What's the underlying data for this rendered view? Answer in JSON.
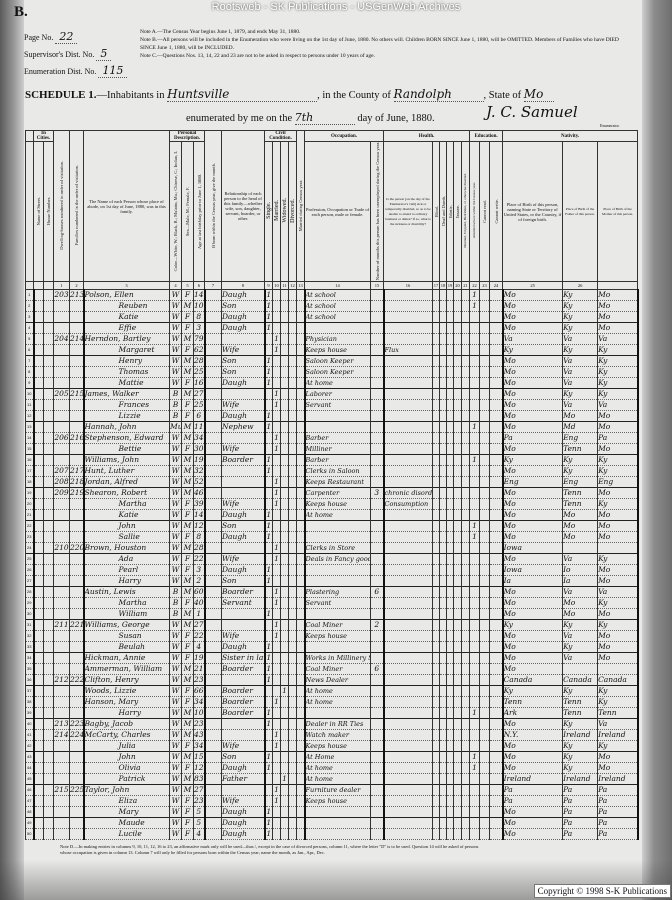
{
  "watermark": "Rootsweb - SK Publications - USGenWeb Archives",
  "form_letter": "B.",
  "meta": {
    "page_label": "Page No.",
    "page_value": "22",
    "supervisor_label": "Supervisor's Dist. No.",
    "supervisor_value": "5",
    "enumeration_label": "Enumeration Dist. No.",
    "enumeration_value": "115"
  },
  "notes": [
    "Note A.—The Census Year begins June 1, 1879, and ends May 31, 1880.",
    "Note B.—All persons will be included in the Enumeration who were living on the 1st day of June, 1880. No others will. Children BORN SINCE June 1, 1880, will be OMITTED. Members of Families who have DIED SINCE June 1, 1880, will be INCLUDED.",
    "Note C.—Questions Nos. 13, 14, 22 and 23 are not to be asked in respect to persons under 10 years of age."
  ],
  "schedule": {
    "title": "SCHEDULE 1.",
    "inhabitants_label": "—Inhabitants in",
    "place": "Huntsville",
    "county_label": ", in the County of",
    "county": "Randolph",
    "state_label": ", State of",
    "state": "Mo",
    "enumerated_label": "enumerated by me on the",
    "day": "7th",
    "day_suffix": "day of June, 1880.",
    "signature": "J. C. Samuel",
    "enumerator_tag": "Enumerator."
  },
  "headers": {
    "groups": [
      "In Cities.",
      "Personal Description.",
      "Civil Condition.",
      "Occupation.",
      "Health.",
      "Education.",
      "Nativity."
    ],
    "street": "Name of Street.",
    "house": "House Number.",
    "dwelling": "Dwelling-houses numbered in order of visitation.",
    "family": "Families numbered in the order of visitation.",
    "name": "The Name of each Person whose place of abode, on 1st day of June, 1880, was in this family.",
    "color": "Color—White, W.; Black, B.; Mulatto, Mu.; Chinese, C.; Indian, I.",
    "sex": "Sex—Male, M.; Female, F.",
    "age": "Age at last birthday prior to June 1, 1880.",
    "month": "If born within the Census year, give the month.",
    "relation": "Relationship of each person to the head of this family—whether wife, son, daughter, servant, boarder, or other.",
    "single": "Single.",
    "married": "Married.",
    "widowed": "Widowed.",
    "divorced": "Divorced.",
    "married_year": "Married during Census year.",
    "occupation": "Profession, Occupation or Trade of each person, male or female.",
    "unemployed": "Number of months this person has been unemployed during the Census year.",
    "sickness": "Is the person [on the day of the Enumerator's visit] sick or temporarily disabled, so as to be unable to attend to ordinary business or duties? If so, what is the sickness or disability?",
    "blind": "Blind.",
    "deaf": "Deaf and Dumb.",
    "idiotic": "Idiotic.",
    "insane": "Insane.",
    "maimed": "Maimed, Crippled, Bedridden, or otherwise disabled.",
    "school": "Attended school within the Census year.",
    "read": "Cannot read.",
    "write": "Cannot write.",
    "birthplace": "Place of Birth of this person, naming State or Territory of United States, or the Country, if of foreign birth.",
    "father_birth": "Place of Birth of the Father of this person.",
    "mother_birth": "Place of Birth of the Mother of this person.",
    "numbers": [
      "",
      "",
      "1",
      "2",
      "3",
      "4",
      "5",
      "6",
      "7",
      "8",
      "9",
      "10",
      "11",
      "12",
      "13",
      "14",
      "15",
      "16",
      "17",
      "18",
      "19",
      "20",
      "21",
      "22",
      "23",
      "24",
      "25",
      "26"
    ]
  },
  "rows": [
    {
      "line": "1",
      "dwelling": "203",
      "family": "213",
      "name": "Polson, Ellen",
      "color": "W",
      "sex": "F",
      "age": "14",
      "relation": "Daugh",
      "single": "1",
      "occupation": "At school",
      "birth": "Mo",
      "father": "Ky",
      "mother": "Mo",
      "school": "1"
    },
    {
      "line": "2",
      "name": "Reuben",
      "color": "W",
      "sex": "M",
      "age": "10",
      "relation": "Son",
      "single": "1",
      "occupation": "At school",
      "birth": "Mo",
      "father": "Ky",
      "mother": "Mo",
      "school": "1"
    },
    {
      "line": "3",
      "name": "Katie",
      "color": "W",
      "sex": "F",
      "age": "8",
      "relation": "Daugh",
      "single": "1",
      "occupation": "At school",
      "birth": "Mo",
      "father": "Ky",
      "mother": "Mo"
    },
    {
      "line": "4",
      "name": "Effie",
      "color": "W",
      "sex": "F",
      "age": "3",
      "relation": "Daugh",
      "single": "1",
      "birth": "Mo",
      "father": "Ky",
      "mother": "Mo",
      "divider": true
    },
    {
      "line": "5",
      "dwelling": "204",
      "family": "214",
      "name": "Herndon, Bartley",
      "color": "W",
      "sex": "M",
      "age": "79",
      "married": "1",
      "occupation": "Physician",
      "birth": "Va",
      "father": "Va",
      "mother": "Va"
    },
    {
      "line": "6",
      "name": "Margaret",
      "color": "W",
      "sex": "F",
      "age": "62",
      "relation": "Wife",
      "married": "1",
      "occupation": "Keeps house",
      "sickness": "Flux",
      "birth": "Ky",
      "father": "Ky",
      "mother": "Ky"
    },
    {
      "line": "7",
      "name": "Henry",
      "color": "W",
      "sex": "M",
      "age": "28",
      "relation": "Son",
      "single": "1",
      "occupation": "Saloon Keeper",
      "birth": "Mo",
      "father": "Va",
      "mother": "Ky",
      "divider": true
    },
    {
      "line": "8",
      "name": "Thomas",
      "color": "W",
      "sex": "M",
      "age": "25",
      "relation": "Son",
      "single": "1",
      "occupation": "Saloon Keeper",
      "birth": "Mo",
      "father": "Va",
      "mother": "Ky"
    },
    {
      "line": "9",
      "name": "Mattie",
      "color": "W",
      "sex": "F",
      "age": "16",
      "relation": "Daugh",
      "single": "1",
      "occupation": "At home",
      "birth": "Mo",
      "father": "Va",
      "mother": "Ky"
    },
    {
      "line": "10",
      "dwelling": "205",
      "family": "215",
      "name": "James, Walker",
      "color": "B",
      "sex": "M",
      "age": "27",
      "married": "1",
      "occupation": "Laborer",
      "birth": "Mo",
      "father": "Ky",
      "mother": "Ky",
      "divider": true
    },
    {
      "line": "11",
      "name": "Frances",
      "color": "B",
      "sex": "F",
      "age": "25",
      "relation": "Wife",
      "married": "1",
      "occupation": "Servant",
      "birth": "Mo",
      "father": "Va",
      "mother": "Va"
    },
    {
      "line": "12",
      "name": "Lizzie",
      "color": "B",
      "sex": "F",
      "age": "6",
      "relation": "Daugh",
      "single": "1",
      "birth": "Mo",
      "father": "Mo",
      "mother": "Mo"
    },
    {
      "line": "13",
      "name": "Hannah, John",
      "color": "Mu",
      "sex": "M",
      "age": "11",
      "relation": "Nephew",
      "single": "1",
      "birth": "Mo",
      "father": "Md",
      "mother": "Mo",
      "school": "1",
      "divider": true
    },
    {
      "line": "14",
      "dwelling": "206",
      "family": "216",
      "name": "Stephenson, Edward",
      "color": "W",
      "sex": "M",
      "age": "34",
      "married": "1",
      "occupation": "Barber",
      "birth": "Pa",
      "father": "Eng",
      "mother": "Pa"
    },
    {
      "line": "15",
      "name": "Bettie",
      "color": "W",
      "sex": "F",
      "age": "30",
      "relation": "Wife",
      "married": "1",
      "occupation": "Milliner",
      "birth": "Mo",
      "father": "Tenn",
      "mother": "Mo"
    },
    {
      "line": "16",
      "name": "Williams, John",
      "color": "W",
      "sex": "M",
      "age": "19",
      "relation": "Boarder",
      "single": "1",
      "occupation": "Barber",
      "birth": "Ky",
      "father": "Ky",
      "mother": "Ky",
      "school": "1",
      "divider": true
    },
    {
      "line": "17",
      "dwelling": "207",
      "family": "217",
      "name": "Hunt, Luther",
      "color": "W",
      "sex": "M",
      "age": "32",
      "single": "1",
      "occupation": "Clerks in Saloon",
      "birth": "Mo",
      "father": "Ky",
      "mother": "Ky"
    },
    {
      "line": "18",
      "dwelling": "208",
      "family": "218",
      "name": "Jordan, Alfred",
      "color": "W",
      "sex": "M",
      "age": "52",
      "married": "1",
      "occupation": "Keeps Restaurant",
      "birth": "Eng",
      "father": "Eng",
      "mother": "Eng"
    },
    {
      "line": "19",
      "dwelling": "209",
      "family": "219",
      "name": "Shearon, Robert",
      "color": "W",
      "sex": "M",
      "age": "46",
      "married": "1",
      "occupation": "Carpenter",
      "unemployed": "3",
      "sickness": "chronic disorder",
      "birth": "Mo",
      "father": "Tenn",
      "mother": "Mo",
      "divider": true
    },
    {
      "line": "20",
      "name": "Martha",
      "color": "W",
      "sex": "F",
      "age": "39",
      "relation": "Wife",
      "married": "1",
      "occupation": "Keeps house",
      "sickness": "Consumption",
      "birth": "Mo",
      "father": "Tenn",
      "mother": "Ky"
    },
    {
      "line": "21",
      "name": "Katie",
      "color": "W",
      "sex": "F",
      "age": "14",
      "relation": "Daugh",
      "single": "1",
      "occupation": "At home",
      "birth": "Mo",
      "father": "Mo",
      "mother": "Mo"
    },
    {
      "line": "22",
      "name": "John",
      "color": "W",
      "sex": "M",
      "age": "12",
      "relation": "Son",
      "single": "1",
      "birth": "Mo",
      "father": "Mo",
      "mother": "Mo",
      "school": "1",
      "divider": true
    },
    {
      "line": "23",
      "name": "Sallie",
      "color": "W",
      "sex": "F",
      "age": "8",
      "relation": "Daugh",
      "single": "1",
      "birth": "Mo",
      "father": "Mo",
      "mother": "Mo",
      "school": "1"
    },
    {
      "line": "24",
      "dwelling": "210",
      "family": "220",
      "name": "Brown, Houston",
      "color": "W",
      "sex": "M",
      "age": "28",
      "married": "1",
      "occupation": "Clerks in Store",
      "birth": "Iowa",
      "father": "",
      "mother": ""
    },
    {
      "line": "25",
      "name": "Ada",
      "color": "W",
      "sex": "F",
      "age": "22",
      "relation": "Wife",
      "married": "1",
      "occupation": "Deals in Fancy goods",
      "birth": "Mo",
      "father": "Va",
      "mother": "Ky",
      "divider": true
    },
    {
      "line": "26",
      "name": "Pearl",
      "color": "W",
      "sex": "F",
      "age": "3",
      "relation": "Daugh",
      "single": "1",
      "birth": "Iowa",
      "father": "Io",
      "mother": "Mo"
    },
    {
      "line": "27",
      "name": "Harry",
      "color": "W",
      "sex": "M",
      "age": "2",
      "relation": "Son",
      "single": "1",
      "birth": "Ia",
      "father": "Ia",
      "mother": "Mo"
    },
    {
      "line": "28",
      "name": "Austin, Lewis",
      "color": "B",
      "sex": "M",
      "age": "60",
      "relation": "Boarder",
      "married": "1",
      "occupation": "Plastering",
      "unemployed": "6",
      "birth": "Mo",
      "father": "Va",
      "mother": "Va",
      "divider": true
    },
    {
      "line": "29",
      "name": "Martha",
      "color": "B",
      "sex": "F",
      "age": "40",
      "relation": "Servant",
      "married": "1",
      "occupation": "Servant",
      "birth": "Mo",
      "father": "Mo",
      "mother": "Ky"
    },
    {
      "line": "30",
      "name": "William",
      "color": "B",
      "sex": "M",
      "age": "1",
      "single": "1",
      "birth": "Mo",
      "father": "Mo",
      "mother": "Mo"
    },
    {
      "line": "31",
      "dwelling": "211",
      "family": "221",
      "name": "Williams, George",
      "color": "W",
      "sex": "M",
      "age": "27",
      "married": "1",
      "occupation": "Coal Miner",
      "unemployed": "2",
      "birth": "Ky",
      "father": "Ky",
      "mother": "Ky",
      "divider": true
    },
    {
      "line": "32",
      "name": "Susan",
      "color": "W",
      "sex": "F",
      "age": "22",
      "relation": "Wife",
      "married": "1",
      "occupation": "Keeps house",
      "birth": "Mo",
      "father": "Va",
      "mother": "Mo"
    },
    {
      "line": "33",
      "name": "Beulah",
      "color": "W",
      "sex": "F",
      "age": "4",
      "relation": "Daugh",
      "single": "1",
      "birth": "Mo",
      "father": "Ky",
      "mother": "Mo"
    },
    {
      "line": "34",
      "name": "Hickman, Annie",
      "color": "W",
      "sex": "F",
      "age": "19",
      "relation": "Sister in law",
      "single": "1",
      "occupation": "Works in Millinery Store",
      "birth": "Mo",
      "father": "Va",
      "mother": "Mo",
      "divider": true
    },
    {
      "line": "35",
      "name": "Ammerman, William",
      "color": "W",
      "sex": "M",
      "age": "21",
      "relation": "Boarder",
      "single": "1",
      "occupation": "Coal Miner",
      "unemployed": "6",
      "birth": "Mo",
      "father": "",
      "mother": ""
    },
    {
      "line": "36",
      "dwelling": "212",
      "family": "222",
      "name": "Clifton, Henry",
      "color": "W",
      "sex": "M",
      "age": "23",
      "single": "1",
      "occupation": "News Dealer",
      "birth": "Canada",
      "father": "Canada",
      "mother": "Canada"
    },
    {
      "line": "37",
      "name": "Woods, Lizzie",
      "color": "W",
      "sex": "F",
      "age": "66",
      "relation": "Boarder",
      "widowed": "1",
      "occupation": "At home",
      "birth": "Ky",
      "father": "Ky",
      "mother": "Ky",
      "divider": true
    },
    {
      "line": "38",
      "name": "Hanson, Mary",
      "color": "W",
      "sex": "F",
      "age": "34",
      "relation": "Boarder",
      "married": "1",
      "occupation": "At home",
      "birth": "Tenn",
      "father": "Tenn",
      "mother": "Ky"
    },
    {
      "line": "39",
      "name": "Harry",
      "color": "W",
      "sex": "M",
      "age": "10",
      "relation": "Boarder",
      "single": "1",
      "birth": "Ark",
      "father": "Tenn",
      "mother": "Tenn",
      "school": "1"
    },
    {
      "line": "40",
      "dwelling": "213",
      "family": "223",
      "name": "Bagby, Jacob",
      "color": "W",
      "sex": "M",
      "age": "23",
      "single": "1",
      "occupation": "Dealer in RR Ties",
      "birth": "Mo",
      "father": "Ky",
      "mother": "Va",
      "divider": true
    },
    {
      "line": "41",
      "dwelling": "214",
      "family": "224",
      "name": "McCarty, Charles",
      "color": "W",
      "sex": "M",
      "age": "43",
      "married": "1",
      "occupation": "Watch maker",
      "birth": "N.Y.",
      "father": "Ireland",
      "mother": "Ireland"
    },
    {
      "line": "42",
      "name": "Julia",
      "color": "W",
      "sex": "F",
      "age": "34",
      "relation": "Wife",
      "married": "1",
      "occupation": "Keeps house",
      "birth": "Mo",
      "father": "Ky",
      "mother": "Ky"
    },
    {
      "line": "43",
      "name": "John",
      "color": "W",
      "sex": "M",
      "age": "15",
      "relation": "Son",
      "single": "1",
      "occupation": "At Home",
      "birth": "Mo",
      "father": "Ky",
      "mother": "Mo",
      "school": "1",
      "divider": true
    },
    {
      "line": "44",
      "name": "Olivia",
      "color": "W",
      "sex": "F",
      "age": "12",
      "relation": "Daugh",
      "single": "1",
      "occupation": "At home",
      "birth": "Mo",
      "father": "Ky",
      "mother": "Mo",
      "school": "1"
    },
    {
      "line": "45",
      "name": "Patrick",
      "color": "W",
      "sex": "M",
      "age": "83",
      "relation": "Father",
      "widowed": "1",
      "occupation": "At home",
      "birth": "Ireland",
      "father": "Ireland",
      "mother": "Ireland"
    },
    {
      "line": "46",
      "dwelling": "215",
      "family": "225",
      "name": "Taylor, John",
      "color": "W",
      "sex": "M",
      "age": "27",
      "married": "1",
      "occupation": "Furniture dealer",
      "birth": "Pa",
      "father": "Pa",
      "mother": "Pa",
      "divider": true
    },
    {
      "line": "47",
      "name": "Eliza",
      "color": "W",
      "sex": "F",
      "age": "23",
      "relation": "Wife",
      "married": "1",
      "occupation": "Keeps house",
      "birth": "Pa",
      "father": "Pa",
      "mother": "Pa"
    },
    {
      "line": "48",
      "name": "Mary",
      "color": "W",
      "sex": "F",
      "age": "5",
      "relation": "Daugh",
      "single": "1",
      "birth": "Mo",
      "father": "Pa",
      "mother": "Pa"
    },
    {
      "line": "49",
      "name": "Maude",
      "color": "W",
      "sex": "F",
      "age": "5",
      "relation": "Daugh",
      "single": "1",
      "birth": "Mo",
      "father": "Pa",
      "mother": "Pa",
      "divider": true
    },
    {
      "line": "50",
      "name": "Lucile",
      "color": "W",
      "sex": "F",
      "age": "4",
      "relation": "Daugh",
      "single": "1",
      "birth": "Mo",
      "father": "Pa",
      "mother": "Pa"
    }
  ],
  "footnote": "Note D.—In making entries in columns 9, 10, 11, 12, 16 to 23, an affirmative mark only will be used—thus /, except in the case of divorced persons, column 11, where the letter \"D\" is to be used. Question 14 will be asked of persons whose occupation is given in column 13. Column 7 will only be filled for persons born within the Census year; name the month, as Jan., Apr., Dec.",
  "copyright": "Copyright © 1998 S-K Publications"
}
